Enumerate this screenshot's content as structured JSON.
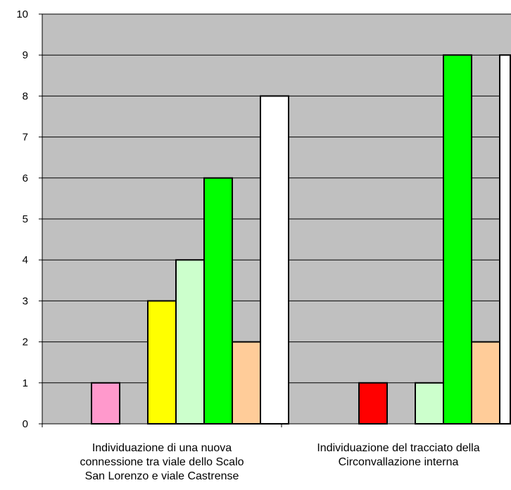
{
  "chart_data": {
    "type": "bar",
    "categories": [
      "Individuazione di una nuova\nconnessione tra viale dello Scalo\nSan Lorenzo e viale Castrense",
      "Individuazione del tracciato della\nCirconvallazione interna"
    ],
    "series": [
      {
        "color": "#ff99cc",
        "values": [
          1,
          0
        ]
      },
      {
        "color": "#ff0000",
        "values": [
          0,
          1
        ]
      },
      {
        "color": "#ffff00",
        "values": [
          3,
          0
        ]
      },
      {
        "color": "#ccffcc",
        "values": [
          4,
          1
        ]
      },
      {
        "color": "#00ff00",
        "values": [
          6,
          9
        ]
      },
      {
        "color": "#ffcc99",
        "values": [
          2,
          2
        ]
      },
      {
        "color": "#ffffff",
        "values": [
          8,
          9
        ]
      }
    ],
    "ylim": [
      0,
      10
    ],
    "yticks": [
      "0",
      "1",
      "2",
      "3",
      "4",
      "5",
      "6",
      "7",
      "8",
      "9",
      "10"
    ],
    "grid": true,
    "plot_background": "#c0c0c0",
    "xlabel": "",
    "ylabel": ""
  }
}
